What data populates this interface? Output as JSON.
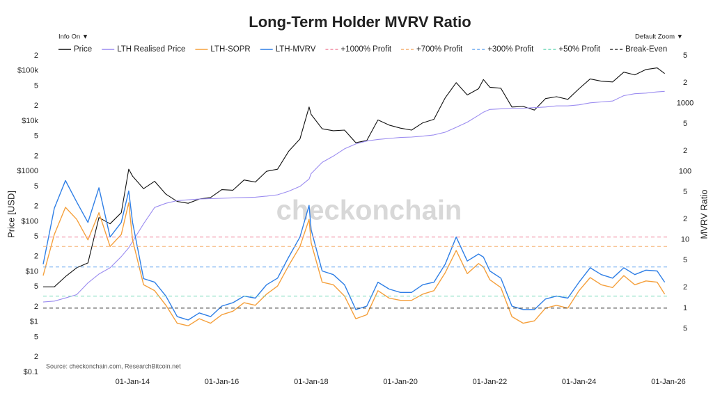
{
  "ui": {
    "info_button": "Info On ▼",
    "zoom_button": "Default Zoom ▼",
    "watermark": "checkonchain"
  },
  "chart_data": {
    "type": "line",
    "title": "Long-Term Holder MVRV Ratio",
    "source": "Source: checkonchain.com, ResearchBitcoin.net",
    "y_label": "Price [USD]",
    "y2_label": "MVRV Ratio",
    "log_y": true,
    "log_y2": true,
    "grid": false,
    "legend": "top",
    "xlim": [
      "2012-01-01",
      "2026-01-01"
    ],
    "xticks": [
      {
        "value": "2014-01-01",
        "label": "01-Jan-14"
      },
      {
        "value": "2016-01-01",
        "label": "01-Jan-16"
      },
      {
        "value": "2018-01-01",
        "label": "01-Jan-18"
      },
      {
        "value": "2020-01-01",
        "label": "01-Jan-20"
      },
      {
        "value": "2022-01-01",
        "label": "01-Jan-22"
      },
      {
        "value": "2024-01-01",
        "label": "01-Jan-24"
      },
      {
        "value": "2026-01-01",
        "label": "01-Jan-26"
      }
    ],
    "ylim": [
      0.1,
      200000
    ],
    "yticks": [
      {
        "value": 0.1,
        "label": "$0.1"
      },
      {
        "value": 0.2,
        "label": "2"
      },
      {
        "value": 0.5,
        "label": "5"
      },
      {
        "value": 1,
        "label": "$1"
      },
      2,
      5,
      {
        "value": 10,
        "label": "$10"
      },
      {
        "value": 20,
        "label": "2"
      },
      {
        "value": 50,
        "label": "5"
      },
      {
        "value": 100,
        "label": "$100"
      },
      {
        "value": 200,
        "label": "2"
      },
      {
        "value": 500,
        "label": "5"
      },
      {
        "value": 1000,
        "label": "$1000"
      },
      {
        "value": 2000,
        "label": "2"
      },
      {
        "value": 5000,
        "label": "5"
      },
      {
        "value": 10000,
        "label": "$10k"
      },
      {
        "value": 20000,
        "label": "2"
      },
      {
        "value": 50000,
        "label": "5"
      },
      {
        "value": 100000,
        "label": "$100k"
      },
      {
        "value": 200000,
        "label": "2"
      }
    ],
    "y2lim": [
      0.115,
      5000
    ],
    "y2ticks": [
      {
        "value": 0.5,
        "label": "5"
      },
      1,
      2,
      5,
      10,
      {
        "value": 20,
        "label": "2"
      },
      {
        "value": 50,
        "label": "5"
      },
      100,
      {
        "value": 200,
        "label": "2"
      },
      {
        "value": 500,
        "label": "5"
      },
      1000,
      {
        "value": 2000,
        "label": "2"
      },
      {
        "value": 5000,
        "label": "5"
      }
    ],
    "x": [
      "2012-01-01",
      "2012-04-01",
      "2012-07-01",
      "2012-10-01",
      "2013-01-01",
      "2013-04-01",
      "2013-07-01",
      "2013-10-01",
      "2013-12-01",
      "2014-01-01",
      "2014-04-01",
      "2014-07-01",
      "2014-10-01",
      "2015-01-01",
      "2015-04-01",
      "2015-07-01",
      "2015-10-01",
      "2016-01-01",
      "2016-04-01",
      "2016-07-01",
      "2016-10-01",
      "2017-01-01",
      "2017-04-01",
      "2017-07-01",
      "2017-10-01",
      "2017-12-15",
      "2018-01-01",
      "2018-04-01",
      "2018-07-01",
      "2018-10-01",
      "2019-01-01",
      "2019-04-01",
      "2019-07-01",
      "2019-10-01",
      "2020-01-01",
      "2020-04-01",
      "2020-07-01",
      "2020-10-01",
      "2021-01-01",
      "2021-04-01",
      "2021-07-01",
      "2021-10-01",
      "2021-11-10",
      "2022-01-01",
      "2022-04-01",
      "2022-07-01",
      "2022-10-01",
      "2023-01-01",
      "2023-04-01",
      "2023-07-01",
      "2023-10-01",
      "2024-01-01",
      "2024-04-01",
      "2024-07-01",
      "2024-10-01",
      "2025-01-01",
      "2025-04-01",
      "2025-07-01",
      "2025-10-01",
      "2025-12-01"
    ],
    "series": [
      {
        "name": "Price",
        "color": "#111111",
        "axis": "y",
        "values": [
          5,
          5,
          8,
          12,
          15,
          120,
          90,
          150,
          1100,
          800,
          450,
          630,
          350,
          250,
          230,
          280,
          300,
          430,
          420,
          670,
          610,
          1000,
          1100,
          2500,
          4400,
          19000,
          13500,
          7000,
          6400,
          6600,
          3700,
          4100,
          10500,
          8300,
          7200,
          6600,
          9200,
          10800,
          29000,
          58000,
          33000,
          44000,
          67000,
          47000,
          45000,
          19000,
          19500,
          16500,
          28000,
          30500,
          27000,
          44000,
          69000,
          62000,
          60000,
          94000,
          83000,
          106000,
          114000,
          88000
        ]
      },
      {
        "name": "LTH Realised Price",
        "color": "#9b8cf0",
        "axis": "y",
        "values": [
          2.5,
          2.6,
          3,
          3.5,
          6,
          9,
          12,
          20,
          30,
          40,
          90,
          190,
          230,
          260,
          270,
          280,
          285,
          290,
          295,
          300,
          305,
          320,
          340,
          400,
          500,
          700,
          900,
          1500,
          2000,
          2800,
          3500,
          4000,
          4300,
          4500,
          4700,
          4800,
          5000,
          5300,
          6000,
          7500,
          9500,
          13000,
          15000,
          17000,
          17500,
          18000,
          18000,
          18500,
          19000,
          20000,
          20000,
          21000,
          23000,
          24000,
          25000,
          32000,
          35000,
          36000,
          38000,
          39000
        ]
      },
      {
        "name": "LTH-SOPR",
        "color": "#f5a03c",
        "axis": "y2",
        "values": [
          3,
          12,
          30,
          20,
          10,
          25,
          8,
          12,
          35,
          10,
          2.2,
          1.8,
          1.1,
          0.6,
          0.55,
          0.7,
          0.6,
          0.8,
          0.9,
          1.2,
          1.1,
          1.6,
          2.1,
          4.2,
          8,
          20,
          9,
          2.4,
          2.2,
          1.5,
          0.7,
          0.8,
          1.8,
          1.4,
          1.3,
          1.3,
          1.6,
          1.8,
          3.3,
          7,
          3.2,
          4.5,
          4,
          2.6,
          2,
          0.75,
          0.6,
          0.65,
          1,
          1.1,
          1,
          1.8,
          2.8,
          2.2,
          2,
          3,
          2.2,
          2.5,
          2.4,
          1.6
        ]
      },
      {
        "name": "LTH-MVRV",
        "color": "#2f7fe6",
        "axis": "y2",
        "values": [
          4.4,
          29,
          74,
          36,
          18,
          58,
          11,
          18,
          52,
          18,
          2.7,
          2.4,
          1.5,
          0.75,
          0.67,
          0.85,
          0.75,
          1.07,
          1.2,
          1.5,
          1.4,
          2.2,
          2.75,
          5.6,
          11,
          32,
          14,
          3.5,
          3.1,
          2.2,
          0.95,
          1.07,
          2.4,
          1.9,
          1.7,
          1.7,
          2.2,
          2.4,
          4.4,
          11,
          4.9,
          6.2,
          5.6,
          3.5,
          2.75,
          1.07,
          0.95,
          0.95,
          1.36,
          1.5,
          1.4,
          2.4,
          3.9,
          3.1,
          2.75,
          3.9,
          3.1,
          3.6,
          3.5,
          2.4
        ]
      },
      {
        "name": "+1000% Profit",
        "color": "#f08aa0",
        "axis": "y2",
        "dashed": true,
        "level": 11
      },
      {
        "name": "+700% Profit",
        "color": "#f5b070",
        "axis": "y2",
        "dashed": true,
        "level": 8
      },
      {
        "name": "+300% Profit",
        "color": "#6aa8f0",
        "axis": "y2",
        "dashed": true,
        "level": 4
      },
      {
        "name": "+50% Profit",
        "color": "#6fd8b8",
        "axis": "y2",
        "dashed": true,
        "level": 1.5
      },
      {
        "name": "Break-Even",
        "color": "#333333",
        "axis": "y2",
        "dashed": true,
        "level": 1
      }
    ]
  }
}
